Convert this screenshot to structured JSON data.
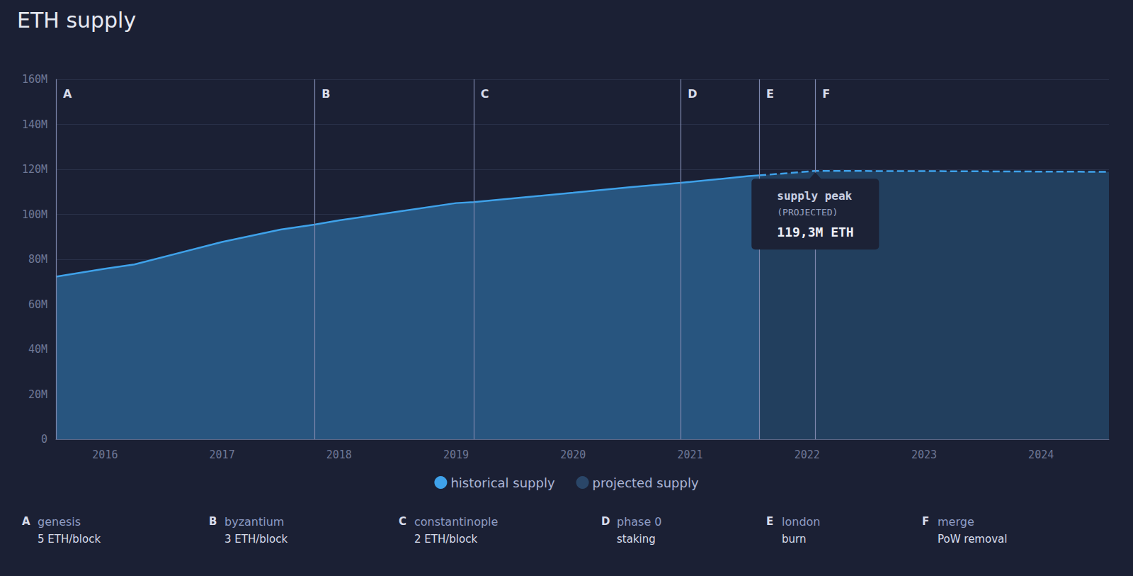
{
  "chart_data": {
    "type": "area",
    "title": "ETH supply",
    "xlim": [
      2015.58,
      2024.58
    ],
    "xticks": [
      2016,
      2017,
      2018,
      2019,
      2020,
      2021,
      2022,
      2023,
      2024
    ],
    "ylim": [
      0,
      160000000
    ],
    "yticks": [
      0,
      {
        "value": 20000000,
        "label": "20M"
      },
      {
        "value": 40000000,
        "label": "40M"
      },
      {
        "value": 60000000,
        "label": "60M"
      },
      {
        "value": 80000000,
        "label": "80M"
      },
      {
        "value": 100000000,
        "label": "100M"
      },
      {
        "value": 120000000,
        "label": "120M"
      },
      {
        "value": 140000000,
        "label": "140M"
      },
      {
        "value": 160000000,
        "label": "160M"
      }
    ],
    "grid": true,
    "legend": "bottom",
    "series": [
      {
        "name": "historical supply",
        "color": "#3fa2ea",
        "line_style": "solid",
        "x": [
          2015.58,
          2016.0,
          2016.25,
          2017.0,
          2017.5,
          2017.79,
          2018.0,
          2018.5,
          2019.0,
          2019.15,
          2020.0,
          2020.5,
          2020.92,
          2021.0,
          2021.5,
          2021.59
        ],
        "values": [
          72300000,
          75800000,
          77700000,
          87700000,
          93200000,
          95400000,
          97300000,
          101200000,
          105000000,
          105400000,
          109600000,
          112100000,
          114000000,
          114400000,
          117000000,
          117300000
        ]
      },
      {
        "name": "projected supply",
        "color": "#2a4668",
        "line_style": "dashed",
        "x": [
          2021.59,
          2022.07,
          2023.0,
          2024.0,
          2024.58
        ],
        "values": [
          117300000,
          119300000,
          119200000,
          119000000,
          118900000
        ]
      }
    ],
    "events": [
      {
        "label": "A",
        "name": "genesis",
        "description": "5 ETH/block",
        "x": 2015.58
      },
      {
        "label": "B",
        "name": "byzantium",
        "description": "3 ETH/block",
        "x": 2017.79
      },
      {
        "label": "C",
        "name": "constantinople",
        "description": "2 ETH/block",
        "x": 2019.15
      },
      {
        "label": "D",
        "name": "phase 0",
        "description": "staking",
        "x": 2020.92
      },
      {
        "label": "E",
        "name": "london",
        "description": "burn",
        "x": 2021.59
      },
      {
        "label": "F",
        "name": "merge",
        "description": "PoW removal",
        "x": 2022.07
      }
    ],
    "annotation": {
      "title": "supply peak",
      "subtitle": "(PROJECTED)",
      "text": "119,3M ETH",
      "x": 2022.07,
      "y": 119300000
    }
  }
}
